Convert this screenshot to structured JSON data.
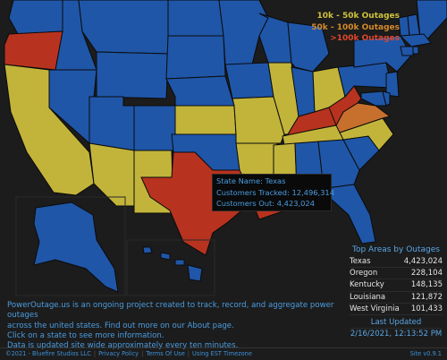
{
  "legend": {
    "tier1": "10k - 50k Outages",
    "tier2": "50k - 100k Outages",
    "tier3": ">100k Outages"
  },
  "colors": {
    "normal": "#1f56a8",
    "tier1": "#c2b43a",
    "tier2": "#c7702e",
    "tier3": "#b8331f",
    "border": "#0b0b0b",
    "background": "#1c1c1c"
  },
  "state_status": {
    "Oregon": "tier3",
    "California": "tier1",
    "Arizona": "tier1",
    "New Mexico": "tier1",
    "Texas": "tier3",
    "Kansas": "tier1",
    "Missouri": "tier1",
    "Illinois": "tier1",
    "Ohio": "tier1",
    "Arkansas": "tier1",
    "Tennessee": "tier1",
    "Kentucky": "tier3",
    "West Virginia": "tier3",
    "Virginia": "tier2",
    "North Carolina": "tier1",
    "Louisiana": "tier3",
    "Mississippi": "tier1"
  },
  "tooltip": {
    "state_label": "State Name:",
    "state_value": "Texas",
    "tracked_label": "Customers Tracked:",
    "tracked_value": "12,496,314",
    "out_label": "Customers Out:",
    "out_value": "4,423,024"
  },
  "top_areas": {
    "title": "Top Areas by Outages",
    "rows": [
      {
        "name": "Texas",
        "value": "4,423,024"
      },
      {
        "name": "Oregon",
        "value": "228,104"
      },
      {
        "name": "Kentucky",
        "value": "148,135"
      },
      {
        "name": "Louisiana",
        "value": "121,872"
      },
      {
        "name": "West Virginia",
        "value": "101,433"
      }
    ],
    "last_updated_label": "Last Updated",
    "last_updated_value": "2/16/2021, 12:13:52 PM"
  },
  "about": {
    "line1": "PowerOutage.us is an ongoing project created to track, record, and aggregate power outages",
    "line2": "across the united states. Find out more on our About page.",
    "line3": "Click on a state to see more information.",
    "line4": "Data is updated site wide approximately every ten minutes."
  },
  "footer": {
    "copyright": "©2021 - Bluefire Studios LLC",
    "privacy": "Privacy Policy",
    "terms": "Terms Of Use",
    "timezone": "Using EST Timezone",
    "version": "Site v0.9.1"
  }
}
